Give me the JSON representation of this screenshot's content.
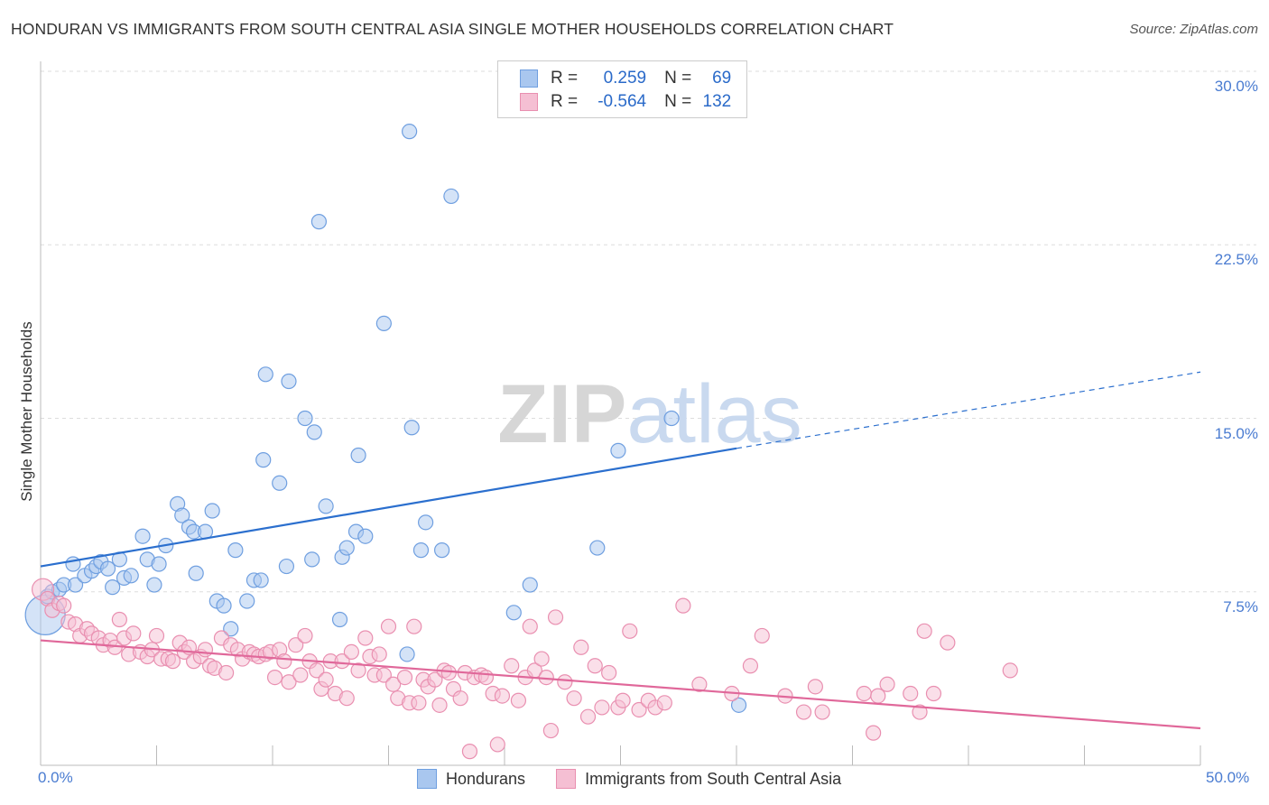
{
  "chart_data": {
    "type": "scatter",
    "title": "HONDURAN VS IMMIGRANTS FROM SOUTH CENTRAL ASIA SINGLE MOTHER HOUSEHOLDS CORRELATION CHART",
    "source": "Source: ZipAtlas.com",
    "xlabel": "",
    "ylabel": "Single Mother Households",
    "xlim": [
      0,
      50
    ],
    "ylim": [
      0,
      30
    ],
    "x_tick_labels": [
      "0.0%",
      "50.0%"
    ],
    "y_ticks": [
      7.5,
      15.0,
      22.5,
      30.0
    ],
    "y_tick_labels": [
      "7.5%",
      "15.0%",
      "22.5%",
      "30.0%"
    ],
    "watermark": "ZIPatlas",
    "legend": {
      "r_label": "R =",
      "n_label": "N =",
      "entries": [
        {
          "r": "0.259",
          "n": "69"
        },
        {
          "r": "-0.564",
          "n": "132"
        }
      ]
    },
    "series": [
      {
        "name": "Hondurans",
        "color": "#6f9fe0",
        "fill": "#a9c7ef",
        "line_color": "#2b6fce",
        "trend": {
          "x0": 0,
          "y0": 8.6,
          "x1": 30,
          "y1": 13.7,
          "dash_to_x": 50,
          "dash_to_y": 17.0
        },
        "points": [
          [
            0.2,
            6.5
          ],
          [
            0.3,
            7.3
          ],
          [
            0.5,
            7.5
          ],
          [
            0.8,
            7.6
          ],
          [
            1.0,
            7.8
          ],
          [
            1.4,
            8.7
          ],
          [
            1.5,
            7.8
          ],
          [
            1.9,
            8.2
          ],
          [
            2.2,
            8.4
          ],
          [
            2.4,
            8.6
          ],
          [
            2.6,
            8.8
          ],
          [
            2.9,
            8.5
          ],
          [
            3.1,
            7.7
          ],
          [
            3.4,
            8.9
          ],
          [
            3.6,
            8.1
          ],
          [
            3.9,
            8.2
          ],
          [
            4.4,
            9.9
          ],
          [
            4.6,
            8.9
          ],
          [
            4.9,
            7.8
          ],
          [
            5.1,
            8.7
          ],
          [
            5.4,
            9.5
          ],
          [
            5.9,
            11.3
          ],
          [
            6.1,
            10.8
          ],
          [
            6.4,
            10.3
          ],
          [
            6.6,
            10.1
          ],
          [
            6.7,
            8.3
          ],
          [
            7.1,
            10.1
          ],
          [
            7.4,
            11.0
          ],
          [
            7.6,
            7.1
          ],
          [
            7.9,
            6.9
          ],
          [
            8.2,
            5.9
          ],
          [
            8.4,
            9.3
          ],
          [
            8.9,
            7.1
          ],
          [
            9.2,
            8.0
          ],
          [
            9.5,
            8.0
          ],
          [
            9.6,
            13.2
          ],
          [
            9.7,
            16.9
          ],
          [
            10.3,
            12.2
          ],
          [
            10.6,
            8.6
          ],
          [
            10.7,
            16.6
          ],
          [
            11.4,
            15.0
          ],
          [
            11.7,
            8.9
          ],
          [
            11.8,
            14.4
          ],
          [
            12.0,
            23.5
          ],
          [
            12.3,
            11.2
          ],
          [
            12.9,
            6.3
          ],
          [
            13.0,
            9.0
          ],
          [
            13.2,
            9.4
          ],
          [
            13.6,
            10.1
          ],
          [
            13.7,
            13.4
          ],
          [
            14.0,
            9.9
          ],
          [
            14.8,
            19.1
          ],
          [
            15.8,
            4.8
          ],
          [
            15.9,
            27.4
          ],
          [
            16.0,
            14.6
          ],
          [
            16.4,
            9.3
          ],
          [
            16.6,
            10.5
          ],
          [
            17.3,
            9.3
          ],
          [
            17.7,
            24.6
          ],
          [
            20.4,
            6.6
          ],
          [
            21.1,
            7.8
          ],
          [
            24.0,
            9.4
          ],
          [
            24.9,
            13.6
          ],
          [
            27.2,
            15.0
          ],
          [
            30.1,
            2.6
          ]
        ]
      },
      {
        "name": "Immigrants from South Central Asia",
        "color": "#e98fb0",
        "fill": "#f5bfd3",
        "line_color": "#e0689a",
        "trend": {
          "x0": 0,
          "y0": 5.4,
          "x1": 50,
          "y1": 1.6
        },
        "points": [
          [
            0.1,
            7.6
          ],
          [
            0.3,
            7.2
          ],
          [
            0.5,
            6.7
          ],
          [
            0.8,
            7.0
          ],
          [
            1.0,
            6.9
          ],
          [
            1.2,
            6.2
          ],
          [
            1.5,
            6.1
          ],
          [
            1.7,
            5.6
          ],
          [
            2.0,
            5.9
          ],
          [
            2.2,
            5.7
          ],
          [
            2.5,
            5.5
          ],
          [
            2.7,
            5.2
          ],
          [
            3.0,
            5.4
          ],
          [
            3.2,
            5.1
          ],
          [
            3.4,
            6.3
          ],
          [
            3.6,
            5.5
          ],
          [
            3.8,
            4.8
          ],
          [
            4.0,
            5.7
          ],
          [
            4.3,
            4.9
          ],
          [
            4.6,
            4.7
          ],
          [
            4.8,
            5.0
          ],
          [
            5.0,
            5.6
          ],
          [
            5.2,
            4.6
          ],
          [
            5.5,
            4.6
          ],
          [
            5.7,
            4.5
          ],
          [
            6.0,
            5.3
          ],
          [
            6.2,
            4.9
          ],
          [
            6.4,
            5.1
          ],
          [
            6.6,
            4.5
          ],
          [
            6.9,
            4.7
          ],
          [
            7.1,
            5.0
          ],
          [
            7.3,
            4.3
          ],
          [
            7.5,
            4.2
          ],
          [
            7.8,
            5.5
          ],
          [
            8.0,
            4.0
          ],
          [
            8.2,
            5.2
          ],
          [
            8.5,
            5.0
          ],
          [
            8.7,
            4.6
          ],
          [
            9.0,
            4.9
          ],
          [
            9.2,
            4.8
          ],
          [
            9.4,
            4.7
          ],
          [
            9.7,
            4.8
          ],
          [
            9.9,
            4.9
          ],
          [
            10.1,
            3.8
          ],
          [
            10.3,
            5.0
          ],
          [
            10.5,
            4.5
          ],
          [
            10.7,
            3.6
          ],
          [
            11.0,
            5.2
          ],
          [
            11.2,
            3.9
          ],
          [
            11.4,
            5.6
          ],
          [
            11.6,
            4.5
          ],
          [
            11.9,
            4.1
          ],
          [
            12.1,
            3.3
          ],
          [
            12.3,
            3.7
          ],
          [
            12.5,
            4.5
          ],
          [
            12.7,
            3.1
          ],
          [
            13.0,
            4.5
          ],
          [
            13.2,
            2.9
          ],
          [
            13.4,
            4.9
          ],
          [
            13.7,
            4.1
          ],
          [
            14.0,
            5.5
          ],
          [
            14.2,
            4.7
          ],
          [
            14.4,
            3.9
          ],
          [
            14.6,
            4.8
          ],
          [
            14.8,
            3.9
          ],
          [
            15.0,
            6.0
          ],
          [
            15.2,
            3.5
          ],
          [
            15.4,
            2.9
          ],
          [
            15.7,
            3.8
          ],
          [
            15.9,
            2.7
          ],
          [
            16.1,
            6.0
          ],
          [
            16.3,
            2.7
          ],
          [
            16.5,
            3.7
          ],
          [
            16.7,
            3.4
          ],
          [
            17.0,
            3.7
          ],
          [
            17.2,
            2.6
          ],
          [
            17.4,
            4.1
          ],
          [
            17.6,
            4.0
          ],
          [
            17.8,
            3.3
          ],
          [
            18.1,
            2.9
          ],
          [
            18.3,
            4.0
          ],
          [
            18.5,
            0.6
          ],
          [
            18.7,
            3.8
          ],
          [
            19.0,
            3.9
          ],
          [
            19.2,
            3.8
          ],
          [
            19.5,
            3.1
          ],
          [
            19.7,
            0.9
          ],
          [
            19.9,
            3.0
          ],
          [
            20.3,
            4.3
          ],
          [
            20.6,
            2.8
          ],
          [
            20.9,
            3.8
          ],
          [
            21.1,
            6.0
          ],
          [
            21.3,
            4.1
          ],
          [
            21.6,
            4.6
          ],
          [
            21.8,
            3.8
          ],
          [
            22.0,
            1.5
          ],
          [
            22.2,
            6.4
          ],
          [
            22.6,
            3.6
          ],
          [
            23.0,
            2.9
          ],
          [
            23.3,
            5.1
          ],
          [
            23.6,
            2.1
          ],
          [
            23.9,
            4.3
          ],
          [
            24.2,
            2.5
          ],
          [
            24.5,
            4.0
          ],
          [
            24.9,
            2.5
          ],
          [
            25.1,
            2.8
          ],
          [
            25.4,
            5.8
          ],
          [
            25.8,
            2.4
          ],
          [
            26.2,
            2.8
          ],
          [
            26.5,
            2.5
          ],
          [
            26.9,
            2.7
          ],
          [
            27.7,
            6.9
          ],
          [
            28.4,
            3.5
          ],
          [
            29.8,
            3.1
          ],
          [
            30.6,
            4.3
          ],
          [
            31.1,
            5.6
          ],
          [
            32.1,
            3.0
          ],
          [
            32.9,
            2.3
          ],
          [
            33.4,
            3.4
          ],
          [
            33.7,
            2.3
          ],
          [
            35.5,
            3.1
          ],
          [
            35.9,
            1.4
          ],
          [
            36.1,
            3.0
          ],
          [
            36.5,
            3.5
          ],
          [
            37.5,
            3.1
          ],
          [
            37.9,
            2.3
          ],
          [
            38.1,
            5.8
          ],
          [
            38.5,
            3.1
          ],
          [
            39.1,
            5.3
          ],
          [
            41.8,
            4.1
          ]
        ]
      }
    ]
  }
}
